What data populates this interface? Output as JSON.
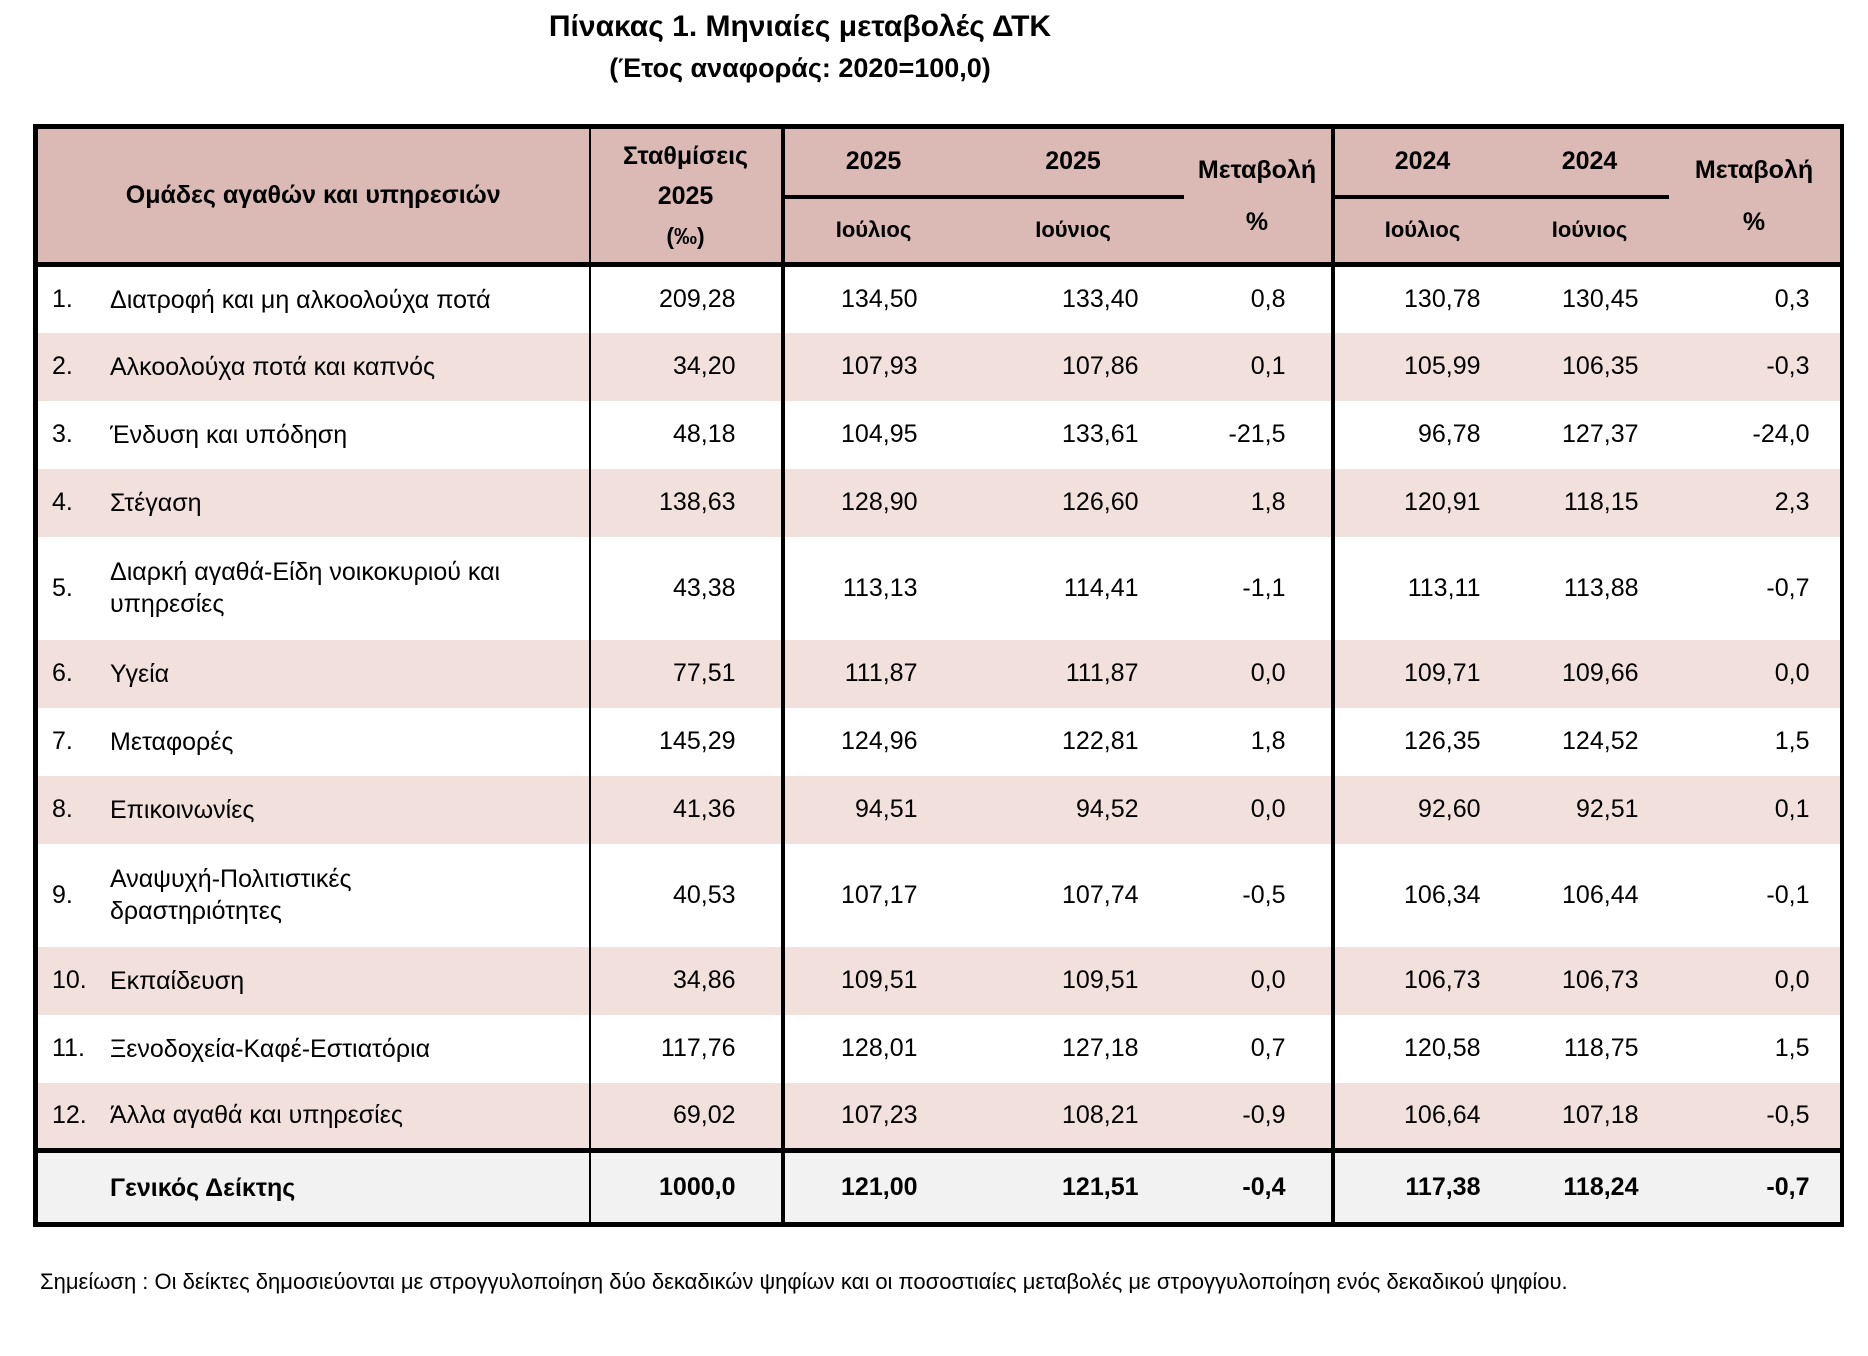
{
  "title": "Πίνακας 1. Μηνιαίες μεταβολές ΔΤΚ",
  "subtitle": "(Έτος αναφοράς: 2020=100,0)",
  "colors": {
    "header_bg": "#DBBAB6",
    "stripe_bg": "#F2E0DC",
    "total_bg": "#F2F2F2",
    "border": "#000000"
  },
  "header": {
    "groups": "Ομάδες αγαθών και υπηρεσιών",
    "weights_line1": "Σταθμίσεις",
    "weights_line2": "2025",
    "weights_line3": "(‰)",
    "year_2025": "2025",
    "year_2024": "2024",
    "month_july": "Ιούλιος",
    "month_june": "Ιούνιος",
    "change_line1": "Μεταβολή",
    "change_line2": "%"
  },
  "rows": [
    {
      "num": "1.",
      "label": "Διατροφή και μη αλκοολούχα ποτά",
      "weight": "209,28",
      "jul25": "134,50",
      "jun25": "133,40",
      "chg25": "0,8",
      "jul24": "130,78",
      "jun24": "130,45",
      "chg24": "0,3"
    },
    {
      "num": "2.",
      "label": "Αλκοολούχα ποτά και καπνός",
      "weight": "34,20",
      "jul25": "107,93",
      "jun25": "107,86",
      "chg25": "0,1",
      "jul24": "105,99",
      "jun24": "106,35",
      "chg24": "-0,3"
    },
    {
      "num": "3.",
      "label": "Ένδυση και υπόδηση",
      "weight": "48,18",
      "jul25": "104,95",
      "jun25": "133,61",
      "chg25": "-21,5",
      "jul24": "96,78",
      "jun24": "127,37",
      "chg24": "-24,0"
    },
    {
      "num": "4.",
      "label": "Στέγαση",
      "weight": "138,63",
      "jul25": "128,90",
      "jun25": "126,60",
      "chg25": "1,8",
      "jul24": "120,91",
      "jun24": "118,15",
      "chg24": "2,3"
    },
    {
      "num": "5.",
      "label": "Διαρκή αγαθά-Είδη νοικοκυριού και\nυπηρεσίες",
      "weight": "43,38",
      "jul25": "113,13",
      "jun25": "114,41",
      "chg25": "-1,1",
      "jul24": "113,11",
      "jun24": "113,88",
      "chg24": "-0,7"
    },
    {
      "num": "6.",
      "label": "Υγεία",
      "weight": "77,51",
      "jul25": "111,87",
      "jun25": "111,87",
      "chg25": "0,0",
      "jul24": "109,71",
      "jun24": "109,66",
      "chg24": "0,0"
    },
    {
      "num": "7.",
      "label": "Μεταφορές",
      "weight": "145,29",
      "jul25": "124,96",
      "jun25": "122,81",
      "chg25": "1,8",
      "jul24": "126,35",
      "jun24": "124,52",
      "chg24": "1,5"
    },
    {
      "num": "8.",
      "label": "Επικοινωνίες",
      "weight": "41,36",
      "jul25": "94,51",
      "jun25": "94,52",
      "chg25": "0,0",
      "jul24": "92,60",
      "jun24": "92,51",
      "chg24": "0,1"
    },
    {
      "num": "9.",
      "label": "Αναψυχή-Πολιτιστικές\nδραστηριότητες",
      "weight": "40,53",
      "jul25": "107,17",
      "jun25": "107,74",
      "chg25": "-0,5",
      "jul24": "106,34",
      "jun24": "106,44",
      "chg24": "-0,1"
    },
    {
      "num": "10.",
      "label": "Εκπαίδευση",
      "weight": "34,86",
      "jul25": "109,51",
      "jun25": "109,51",
      "chg25": "0,0",
      "jul24": "106,73",
      "jun24": "106,73",
      "chg24": "0,0"
    },
    {
      "num": "11.",
      "label": "Ξενοδοχεία-Καφέ-Εστιατόρια",
      "weight": "117,76",
      "jul25": "128,01",
      "jun25": "127,18",
      "chg25": "0,7",
      "jul24": "120,58",
      "jun24": "118,75",
      "chg24": "1,5"
    },
    {
      "num": "12.",
      "label": "Άλλα αγαθά και υπηρεσίες",
      "weight": "69,02",
      "jul25": "107,23",
      "jun25": "108,21",
      "chg25": "-0,9",
      "jul24": "106,64",
      "jun24": "107,18",
      "chg24": "-0,5"
    }
  ],
  "total": {
    "label": "Γενικός Δείκτης",
    "weight": "1000,0",
    "jul25": "121,00",
    "jun25": "121,51",
    "chg25": "-0,4",
    "jul24": "117,38",
    "jun24": "118,24",
    "chg24": "-0,7"
  },
  "footnote": "Σημείωση :  Οι δείκτες δημοσιεύονται με στρογγυλοποίηση δύο δεκαδικών ψηφίων και οι ποσοστιαίες μεταβολές με στρογγυλοποίηση ενός δεκαδικού ψηφίου."
}
